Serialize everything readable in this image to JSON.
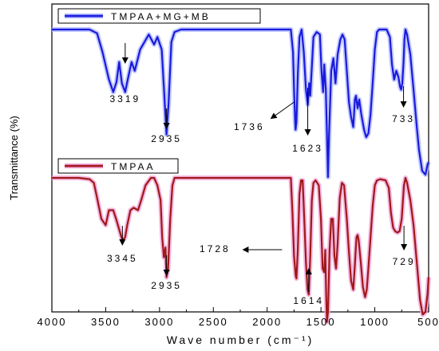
{
  "chart_data": {
    "type": "line",
    "title": "",
    "xlabel": "Wave number (cm⁻¹)",
    "ylabel": "Transmittance (%)",
    "xlim": [
      4000,
      500
    ],
    "x_ticks": [
      4000,
      3500,
      3000,
      2500,
      2000,
      1500,
      1000,
      500
    ],
    "series": [
      {
        "name": "TMPAA+MG+MB",
        "color": "#1a1adc",
        "glow": "#aab4ff",
        "points": [
          [
            4000,
            0.88
          ],
          [
            3650,
            0.88
          ],
          [
            3580,
            0.85
          ],
          [
            3530,
            0.7
          ],
          [
            3470,
            0.48
          ],
          [
            3430,
            0.38
          ],
          [
            3400,
            0.46
          ],
          [
            3375,
            0.62
          ],
          [
            3350,
            0.45
          ],
          [
            3319,
            0.38
          ],
          [
            3290,
            0.5
          ],
          [
            3260,
            0.62
          ],
          [
            3230,
            0.55
          ],
          [
            3180,
            0.72
          ],
          [
            3100,
            0.84
          ],
          [
            3050,
            0.76
          ],
          [
            3020,
            0.82
          ],
          [
            2980,
            0.72
          ],
          [
            2960,
            0.42
          ],
          [
            2935,
            0.04
          ],
          [
            2915,
            0.3
          ],
          [
            2890,
            0.78
          ],
          [
            2860,
            0.86
          ],
          [
            2800,
            0.88
          ],
          [
            1780,
            0.88
          ],
          [
            1760,
            0.7
          ],
          [
            1750,
            0.4
          ],
          [
            1740,
            0.14
          ],
          [
            1736,
            0.08
          ],
          [
            1728,
            0.14
          ],
          [
            1715,
            0.52
          ],
          [
            1700,
            0.82
          ],
          [
            1680,
            0.88
          ],
          [
            1660,
            0.7
          ],
          [
            1640,
            0.4
          ],
          [
            1623,
            0.28
          ],
          [
            1610,
            0.45
          ],
          [
            1600,
            0.35
          ],
          [
            1585,
            0.58
          ],
          [
            1570,
            0.82
          ],
          [
            1540,
            0.86
          ],
          [
            1510,
            0.84
          ],
          [
            1495,
            0.55
          ],
          [
            1480,
            0.38
          ],
          [
            1470,
            0.6
          ],
          [
            1455,
            0.4
          ],
          [
            1445,
            0.05
          ],
          [
            1435,
            -0.3
          ],
          [
            1425,
            0.05
          ],
          [
            1405,
            0.55
          ],
          [
            1385,
            0.65
          ],
          [
            1365,
            0.45
          ],
          [
            1345,
            0.68
          ],
          [
            1320,
            0.8
          ],
          [
            1300,
            0.84
          ],
          [
            1280,
            0.8
          ],
          [
            1260,
            0.55
          ],
          [
            1240,
            0.3
          ],
          [
            1220,
            0.18
          ],
          [
            1200,
            0.1
          ],
          [
            1185,
            0.32
          ],
          [
            1175,
            0.35
          ],
          [
            1160,
            0.25
          ],
          [
            1145,
            0.32
          ],
          [
            1125,
            0.2
          ],
          [
            1100,
            0.08
          ],
          [
            1080,
            0.02
          ],
          [
            1060,
            0.05
          ],
          [
            1040,
            0.2
          ],
          [
            1020,
            0.45
          ],
          [
            1000,
            0.72
          ],
          [
            980,
            0.86
          ],
          [
            960,
            0.88
          ],
          [
            890,
            0.88
          ],
          [
            860,
            0.82
          ],
          [
            840,
            0.6
          ],
          [
            820,
            0.48
          ],
          [
            800,
            0.55
          ],
          [
            780,
            0.5
          ],
          [
            765,
            0.42
          ],
          [
            755,
            0.4
          ],
          [
            745,
            0.45
          ],
          [
            733,
            0.62
          ],
          [
            725,
            0.8
          ],
          [
            715,
            0.88
          ],
          [
            700,
            0.84
          ],
          [
            670,
            0.68
          ],
          [
            640,
            0.4
          ],
          [
            610,
            0.1
          ],
          [
            590,
            -0.08
          ],
          [
            560,
            -0.25
          ],
          [
            530,
            -0.28
          ],
          [
            510,
            -0.2
          ],
          [
            500,
            -0.18
          ]
        ]
      },
      {
        "name": "TMPAA",
        "color": "#a01818",
        "glow": "#f0a0d8",
        "points": [
          [
            4000,
            0.88
          ],
          [
            3750,
            0.88
          ],
          [
            3650,
            0.87
          ],
          [
            3610,
            0.84
          ],
          [
            3580,
            0.72
          ],
          [
            3540,
            0.55
          ],
          [
            3500,
            0.5
          ],
          [
            3470,
            0.62
          ],
          [
            3430,
            0.62
          ],
          [
            3400,
            0.54
          ],
          [
            3360,
            0.42
          ],
          [
            3345,
            0.38
          ],
          [
            3320,
            0.4
          ],
          [
            3300,
            0.5
          ],
          [
            3270,
            0.62
          ],
          [
            3240,
            0.64
          ],
          [
            3200,
            0.62
          ],
          [
            3170,
            0.7
          ],
          [
            3130,
            0.82
          ],
          [
            3080,
            0.88
          ],
          [
            3050,
            0.88
          ],
          [
            3020,
            0.82
          ],
          [
            2990,
            0.7
          ],
          [
            2975,
            0.4
          ],
          [
            2960,
            0.24
          ],
          [
            2945,
            0.32
          ],
          [
            2935,
            0.08
          ],
          [
            2920,
            0.15
          ],
          [
            2900,
            0.55
          ],
          [
            2880,
            0.82
          ],
          [
            2860,
            0.88
          ],
          [
            2700,
            0.88
          ],
          [
            1780,
            0.88
          ],
          [
            1765,
            0.6
          ],
          [
            1750,
            0.25
          ],
          [
            1735,
            0.09
          ],
          [
            1728,
            0.07
          ],
          [
            1715,
            0.3
          ],
          [
            1700,
            0.75
          ],
          [
            1685,
            0.86
          ],
          [
            1670,
            0.86
          ],
          [
            1655,
            0.55
          ],
          [
            1640,
            0.2
          ],
          [
            1625,
            -0.02
          ],
          [
            1614,
            -0.06
          ],
          [
            1600,
            0.25
          ],
          [
            1585,
            0.7
          ],
          [
            1570,
            0.84
          ],
          [
            1550,
            0.86
          ],
          [
            1520,
            0.82
          ],
          [
            1500,
            0.55
          ],
          [
            1485,
            0.15
          ],
          [
            1470,
            0.12
          ],
          [
            1460,
            0.3
          ],
          [
            1452,
            -0.05
          ],
          [
            1445,
            -0.28
          ],
          [
            1435,
            -0.2
          ],
          [
            1420,
            0.3
          ],
          [
            1405,
            0.55
          ],
          [
            1390,
            0.55
          ],
          [
            1375,
            0.25
          ],
          [
            1360,
            0.15
          ],
          [
            1345,
            0.35
          ],
          [
            1325,
            0.72
          ],
          [
            1305,
            0.84
          ],
          [
            1285,
            0.82
          ],
          [
            1260,
            0.55
          ],
          [
            1240,
            0.28
          ],
          [
            1220,
            0.05
          ],
          [
            1200,
            -0.02
          ],
          [
            1185,
            0.18
          ],
          [
            1170,
            0.4
          ],
          [
            1160,
            0.42
          ],
          [
            1150,
            0.38
          ],
          [
            1130,
            0.2
          ],
          [
            1110,
            0.0
          ],
          [
            1090,
            -0.08
          ],
          [
            1075,
            -0.02
          ],
          [
            1060,
            0.15
          ],
          [
            1040,
            0.4
          ],
          [
            1020,
            0.65
          ],
          [
            1000,
            0.82
          ],
          [
            980,
            0.86
          ],
          [
            950,
            0.87
          ],
          [
            900,
            0.86
          ],
          [
            870,
            0.8
          ],
          [
            850,
            0.6
          ],
          [
            830,
            0.48
          ],
          [
            810,
            0.45
          ],
          [
            790,
            0.44
          ],
          [
            770,
            0.45
          ],
          [
            750,
            0.55
          ],
          [
            729,
            0.82
          ],
          [
            715,
            0.88
          ],
          [
            700,
            0.84
          ],
          [
            670,
            0.7
          ],
          [
            640,
            0.5
          ],
          [
            610,
            0.2
          ],
          [
            580,
            -0.1
          ],
          [
            555,
            -0.22
          ],
          [
            530,
            -0.2
          ],
          [
            510,
            -0.05
          ],
          [
            500,
            0.08
          ]
        ]
      }
    ],
    "annotations": [
      {
        "series": 0,
        "label": "3319",
        "wn": 3319,
        "arrow": "down"
      },
      {
        "series": 0,
        "label": "2935",
        "wn": 2935,
        "arrow": "down"
      },
      {
        "series": 0,
        "label": "1736",
        "wn": 1736,
        "arrow": "left-up"
      },
      {
        "series": 0,
        "label": "1623",
        "wn": 1623,
        "arrow": "down"
      },
      {
        "series": 0,
        "label": "733",
        "wn": 733,
        "arrow": "down"
      },
      {
        "series": 1,
        "label": "3345",
        "wn": 3345,
        "arrow": "down"
      },
      {
        "series": 1,
        "label": "2935",
        "wn": 2935,
        "arrow": "down"
      },
      {
        "series": 1,
        "label": "1728",
        "wn": 1728,
        "arrow": "left"
      },
      {
        "series": 1,
        "label": "1614",
        "wn": 1614,
        "arrow": "up"
      },
      {
        "series": 1,
        "label": "729",
        "wn": 729,
        "arrow": "down"
      }
    ],
    "legend_placement": "top-left of each panel",
    "grid": false
  }
}
